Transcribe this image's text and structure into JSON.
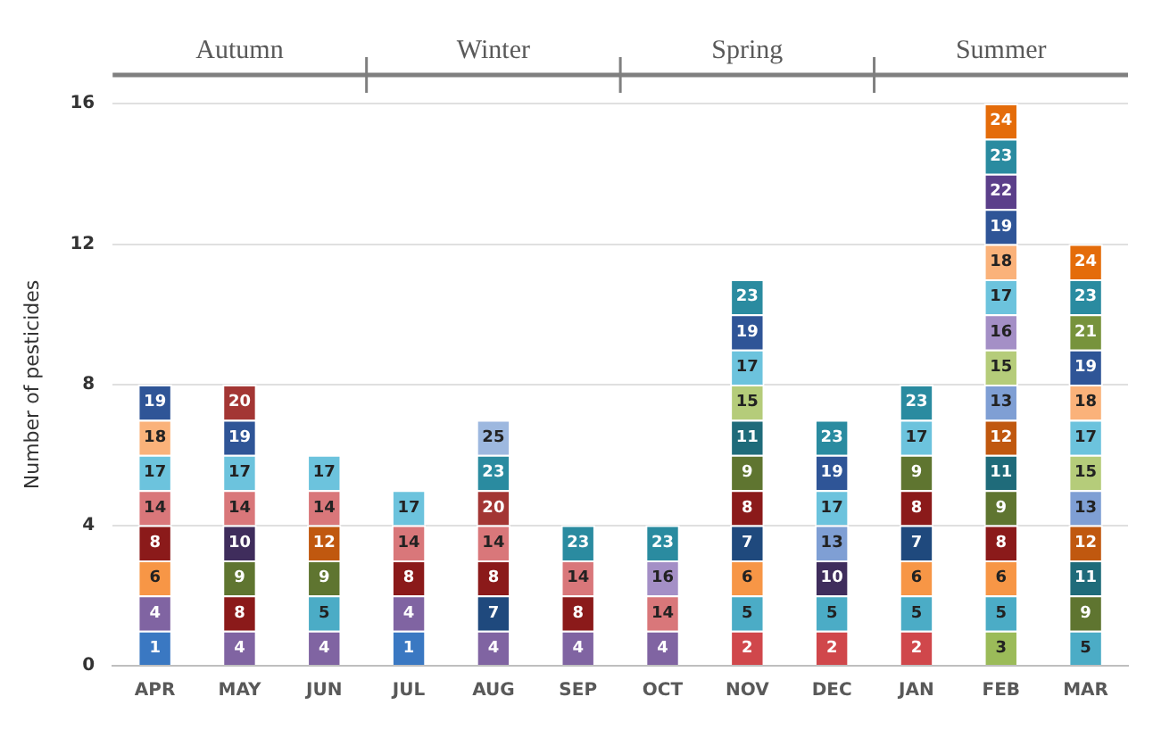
{
  "chart_data": {
    "type": "bar",
    "stacked": true,
    "ylabel": "Number of pesticides",
    "categories": [
      "APR",
      "MAY",
      "JUN",
      "JUL",
      "AUG",
      "SEP",
      "OCT",
      "NOV",
      "DEC",
      "JAN",
      "FEB",
      "MAR"
    ],
    "ylim": [
      0,
      16
    ],
    "yticks": [
      0,
      4,
      8,
      12,
      16
    ],
    "grid": "y",
    "legend": false,
    "annotations": [
      "Autumn",
      "Winter",
      "Spring",
      "Summer"
    ],
    "series": [
      {
        "name": "1",
        "color": "#3a78c2",
        "values": [
          1,
          null,
          null,
          1,
          null,
          null,
          null,
          null,
          null,
          null,
          null,
          null
        ]
      },
      {
        "name": "2",
        "color": "#d0474b",
        "values": [
          null,
          null,
          null,
          null,
          null,
          null,
          null,
          1,
          1,
          1,
          null,
          null
        ]
      },
      {
        "name": "3",
        "color": "#9bbb59",
        "values": [
          null,
          null,
          null,
          null,
          null,
          null,
          null,
          null,
          null,
          null,
          1,
          null
        ]
      },
      {
        "name": "4",
        "color": "#8064a2",
        "values": [
          1,
          1,
          1,
          1,
          1,
          1,
          1,
          null,
          null,
          null,
          null,
          null
        ]
      },
      {
        "name": "5",
        "color": "#4bacc6",
        "values": [
          null,
          null,
          1,
          null,
          null,
          null,
          null,
          1,
          1,
          1,
          1,
          1
        ]
      },
      {
        "name": "6",
        "color": "#f79646",
        "values": [
          1,
          null,
          null,
          null,
          null,
          null,
          null,
          1,
          null,
          1,
          1,
          null
        ]
      },
      {
        "name": "7",
        "color": "#1f497d",
        "values": [
          null,
          null,
          null,
          null,
          1,
          null,
          null,
          1,
          null,
          1,
          null,
          null
        ]
      },
      {
        "name": "8",
        "color": "#8b1a1a",
        "values": [
          1,
          1,
          null,
          1,
          1,
          1,
          null,
          1,
          null,
          1,
          1,
          null
        ]
      },
      {
        "name": "9",
        "color": "#5f7530",
        "values": [
          null,
          1,
          1,
          null,
          null,
          null,
          null,
          1,
          null,
          1,
          1,
          1
        ]
      },
      {
        "name": "10",
        "color": "#3f2d5c",
        "values": [
          null,
          1,
          null,
          null,
          null,
          null,
          null,
          null,
          1,
          null,
          null,
          null
        ]
      },
      {
        "name": "11",
        "color": "#1f6b7a",
        "values": [
          null,
          null,
          null,
          null,
          null,
          null,
          null,
          1,
          null,
          null,
          1,
          1
        ]
      },
      {
        "name": "12",
        "color": "#c0580f",
        "values": [
          null,
          null,
          1,
          null,
          null,
          null,
          null,
          null,
          null,
          null,
          1,
          1
        ]
      },
      {
        "name": "13",
        "color": "#7f9fd4",
        "values": [
          null,
          null,
          null,
          null,
          null,
          null,
          null,
          null,
          1,
          null,
          1,
          1
        ]
      },
      {
        "name": "14",
        "color": "#d9777a",
        "values": [
          1,
          1,
          1,
          1,
          1,
          1,
          1,
          null,
          null,
          null,
          null,
          null
        ]
      },
      {
        "name": "15",
        "color": "#b5cc7a",
        "values": [
          null,
          null,
          null,
          null,
          null,
          null,
          null,
          1,
          null,
          null,
          1,
          1
        ]
      },
      {
        "name": "16",
        "color": "#a48fc6",
        "values": [
          null,
          null,
          null,
          null,
          null,
          null,
          1,
          null,
          null,
          null,
          1,
          null
        ]
      },
      {
        "name": "17",
        "color": "#6cc3dd",
        "values": [
          1,
          1,
          1,
          1,
          null,
          null,
          null,
          1,
          1,
          1,
          1,
          1
        ]
      },
      {
        "name": "18",
        "color": "#fab27a",
        "values": [
          1,
          null,
          null,
          null,
          null,
          null,
          null,
          null,
          null,
          null,
          1,
          1
        ]
      },
      {
        "name": "19",
        "color": "#2f5597",
        "values": [
          1,
          1,
          null,
          null,
          null,
          null,
          null,
          1,
          1,
          null,
          1,
          1
        ]
      },
      {
        "name": "20",
        "color": "#a33634",
        "values": [
          null,
          1,
          null,
          null,
          1,
          null,
          null,
          null,
          null,
          null,
          null,
          null
        ]
      },
      {
        "name": "21",
        "color": "#77933c",
        "values": [
          null,
          null,
          null,
          null,
          null,
          null,
          null,
          null,
          null,
          null,
          null,
          1
        ]
      },
      {
        "name": "22",
        "color": "#5b3f8a",
        "values": [
          null,
          null,
          null,
          null,
          null,
          null,
          null,
          null,
          null,
          null,
          1,
          null
        ]
      },
      {
        "name": "23",
        "color": "#2a8ba0",
        "values": [
          null,
          null,
          null,
          null,
          1,
          1,
          1,
          1,
          1,
          1,
          1,
          1
        ]
      },
      {
        "name": "24",
        "color": "#e46c0a",
        "values": [
          null,
          null,
          null,
          null,
          null,
          null,
          null,
          null,
          null,
          null,
          1,
          1
        ]
      },
      {
        "name": "25",
        "color": "#9db8df",
        "values": [
          null,
          null,
          null,
          null,
          1,
          null,
          null,
          null,
          null,
          null,
          null,
          null
        ]
      }
    ]
  }
}
